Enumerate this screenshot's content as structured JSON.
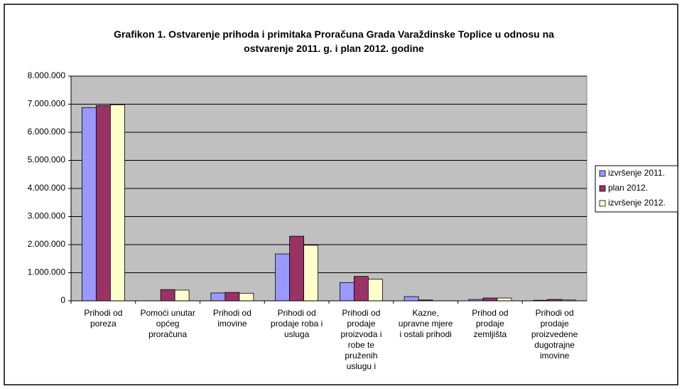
{
  "chart_data": {
    "type": "bar",
    "title": "Grafikon 1. Ostvarenje prihoda i primitaka Proračuna Grada Varaždinske Toplice u odnosu na ostvarenje 2011. g. i plan 2012. godine",
    "categories": [
      "Prihodi od poreza",
      "Pomoći unutar općeg proračuna",
      "Prihodi od imovine",
      "Prihodi od prodaje roba i usluga",
      "Prihodi od prodaje proizvoda i robe te pruženih uslugu i",
      "Kazne, upravne mjere i ostali prihodi",
      "Prihod od prodaje zemljišta",
      "Prihodi od prodaje proizvedene dugotrajne imovine"
    ],
    "series": [
      {
        "name": "izvršenje 2011.",
        "color": "#9999ff",
        "values": [
          6880000,
          0,
          280000,
          1670000,
          650000,
          150000,
          50000,
          20000
        ]
      },
      {
        "name": "plan 2012.",
        "color": "#993366",
        "values": [
          6950000,
          400000,
          300000,
          2300000,
          870000,
          30000,
          100000,
          50000
        ]
      },
      {
        "name": "izvršenje 2012.",
        "color": "#ffffcc",
        "values": [
          6980000,
          380000,
          270000,
          1980000,
          770000,
          0,
          100000,
          30000
        ]
      }
    ],
    "ylim": [
      0,
      8000000
    ],
    "yticks": [
      0,
      {
        "value": 1000000,
        "label": "1.000.000"
      },
      {
        "value": 2000000,
        "label": "2.000.000"
      },
      {
        "value": 3000000,
        "label": "3.000.000"
      },
      {
        "value": 4000000,
        "label": "4.000.000"
      },
      {
        "value": 5000000,
        "label": "5.000.000"
      },
      {
        "value": 6000000,
        "label": "6.000.000"
      },
      {
        "value": 7000000,
        "label": "7.000.000"
      },
      {
        "value": 8000000,
        "label": "8.000.000"
      }
    ],
    "grid": true,
    "legend": "right"
  }
}
